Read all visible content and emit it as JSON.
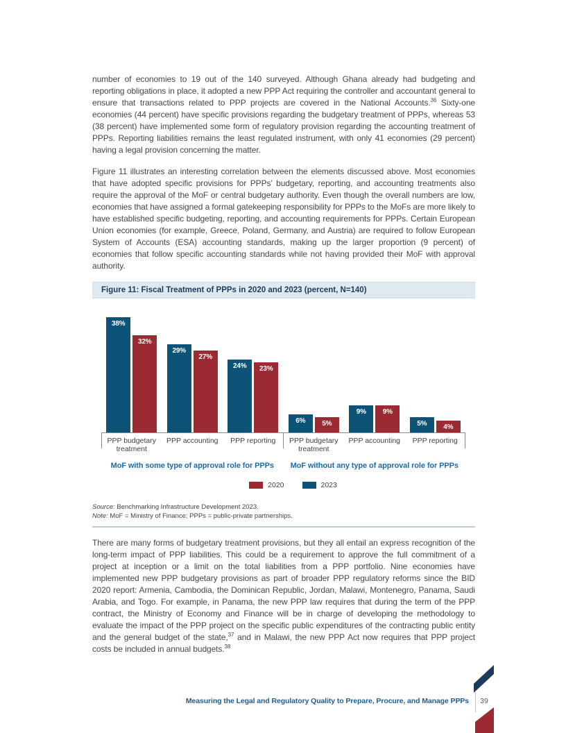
{
  "colors": {
    "bar_2020_red": "#9b2a32",
    "bar_2023_blue": "#0d5378",
    "figure_header_bg": "#dfe9f0",
    "figure_header_text": "#1e3a5f",
    "group_label_blue": "#1c6aa8",
    "footer_blue": "#1f5c8c",
    "body_text": "#454545",
    "corner_navy": "#1b3a5c",
    "corner_red": "#9b2a32"
  },
  "body": {
    "para1": {
      "run1": "number of economies to 19 out of the 140 surveyed. Although Ghana already had budgeting and reporting obligations in place, it adopted a new PPP Act requiring the controller and accountant general to ensure that transactions related to PPP projects are covered in the National Accounts.",
      "sup1": "36",
      "run2": " Sixty-one economies (44 percent) have specific provisions regarding the budgetary treatment of PPPs, whereas 53 (38 percent) have implemented some form of regulatory provision regarding the accounting treatment of PPPs. Reporting liabilities remains the least regulated instrument, with only 41 economies (29 percent) having a legal provision concerning the matter."
    },
    "para2": {
      "run1": "Figure 11 illustrates an interesting correlation between the elements discussed above. Most economies that have adopted specific provisions for PPPs’ budgetary, reporting, and accounting treatments also require the approval of the MoF or central budgetary authority. Even though the overall numbers are low, economies that have assigned a formal gatekeeping responsibility for PPPs to the MoFs are more likely to have established specific budgeting, reporting, and accounting requirements for PPPs. Certain European Union economies (for example, Greece, Poland, Germany, and Austria) are required to follow European System of Accounts (ESA) accounting standards, making up the larger proportion (9 percent) of economies that follow specific accounting standards while not having provided their MoF with approval authority."
    },
    "para3": {
      "run1": "There are many forms of budgetary treatment provisions, but they all entail an express recognition of the long-term impact of PPP liabilities. This could be a requirement to approve the full commitment of a project at inception or a limit on the total liabilities from a PPP portfolio. Nine economies have implemented new PPP budgetary provisions as part of broader PPP regulatory reforms since the BID 2020 report: Armenia, Cambodia, the Dominican Republic, Jordan, Malawi, Montenegro, Panama, Saudi Arabia, and Togo. For example, in Panama, the new PPP law requires that during the term of the PPP contract, the Ministry of Economy and Finance will be in charge of developing the methodology to evaluate the impact of the PPP project on the specific public expenditures of the contracting public entity and the general budget of the state,",
      "sup1": "37",
      "run2": " and in Malawi, the new PPP Act now requires that PPP project costs be included in annual budgets.",
      "sup2": "38"
    }
  },
  "figure": {
    "title": "Figure 11: Fiscal Treatment of PPPs in 2020 and 2023 (percent, N=140)"
  },
  "chart_data": {
    "type": "bar",
    "title": "Figure 11: Fiscal Treatment of PPPs in 2020 and 2023 (percent, N=140)",
    "ylim": [
      0,
      40
    ],
    "value_suffix": "%",
    "grid": false,
    "legend_position": "bottom",
    "bar_order": [
      "2023",
      "2020"
    ],
    "colors": {
      "2020": "#9b2a32",
      "2023": "#0d5378"
    },
    "groups": [
      {
        "label": "MoF with some type of approval role for PPPs",
        "categories": [
          "PPP budgetary treatment",
          "PPP accounting",
          "PPP reporting"
        ],
        "series": [
          {
            "name": "2023",
            "values": [
              38,
              29,
              24
            ]
          },
          {
            "name": "2020",
            "values": [
              32,
              27,
              23
            ]
          }
        ]
      },
      {
        "label": "MoF without any type of approval role for PPPs",
        "categories": [
          "PPP budgetary treatment",
          "PPP accounting",
          "PPP reporting"
        ],
        "series": [
          {
            "name": "2023",
            "values": [
              6,
              9,
              5
            ]
          },
          {
            "name": "2020",
            "values": [
              5,
              9,
              4
            ]
          }
        ]
      }
    ],
    "legend": [
      {
        "name": "2020",
        "color": "#9b2a32"
      },
      {
        "name": "2023",
        "color": "#0d5378"
      }
    ]
  },
  "source": {
    "label": "Source:",
    "text": " Benchmarking Infrastructure Development 2023."
  },
  "note": {
    "label": "Note:",
    "text": " MoF = Ministry of Finance; PPPs = public-private partnerships."
  },
  "footer": {
    "title": "Measuring the Legal and Regulatory Quality to Prepare, Procure, and Manage PPPs",
    "page_number": "39"
  }
}
